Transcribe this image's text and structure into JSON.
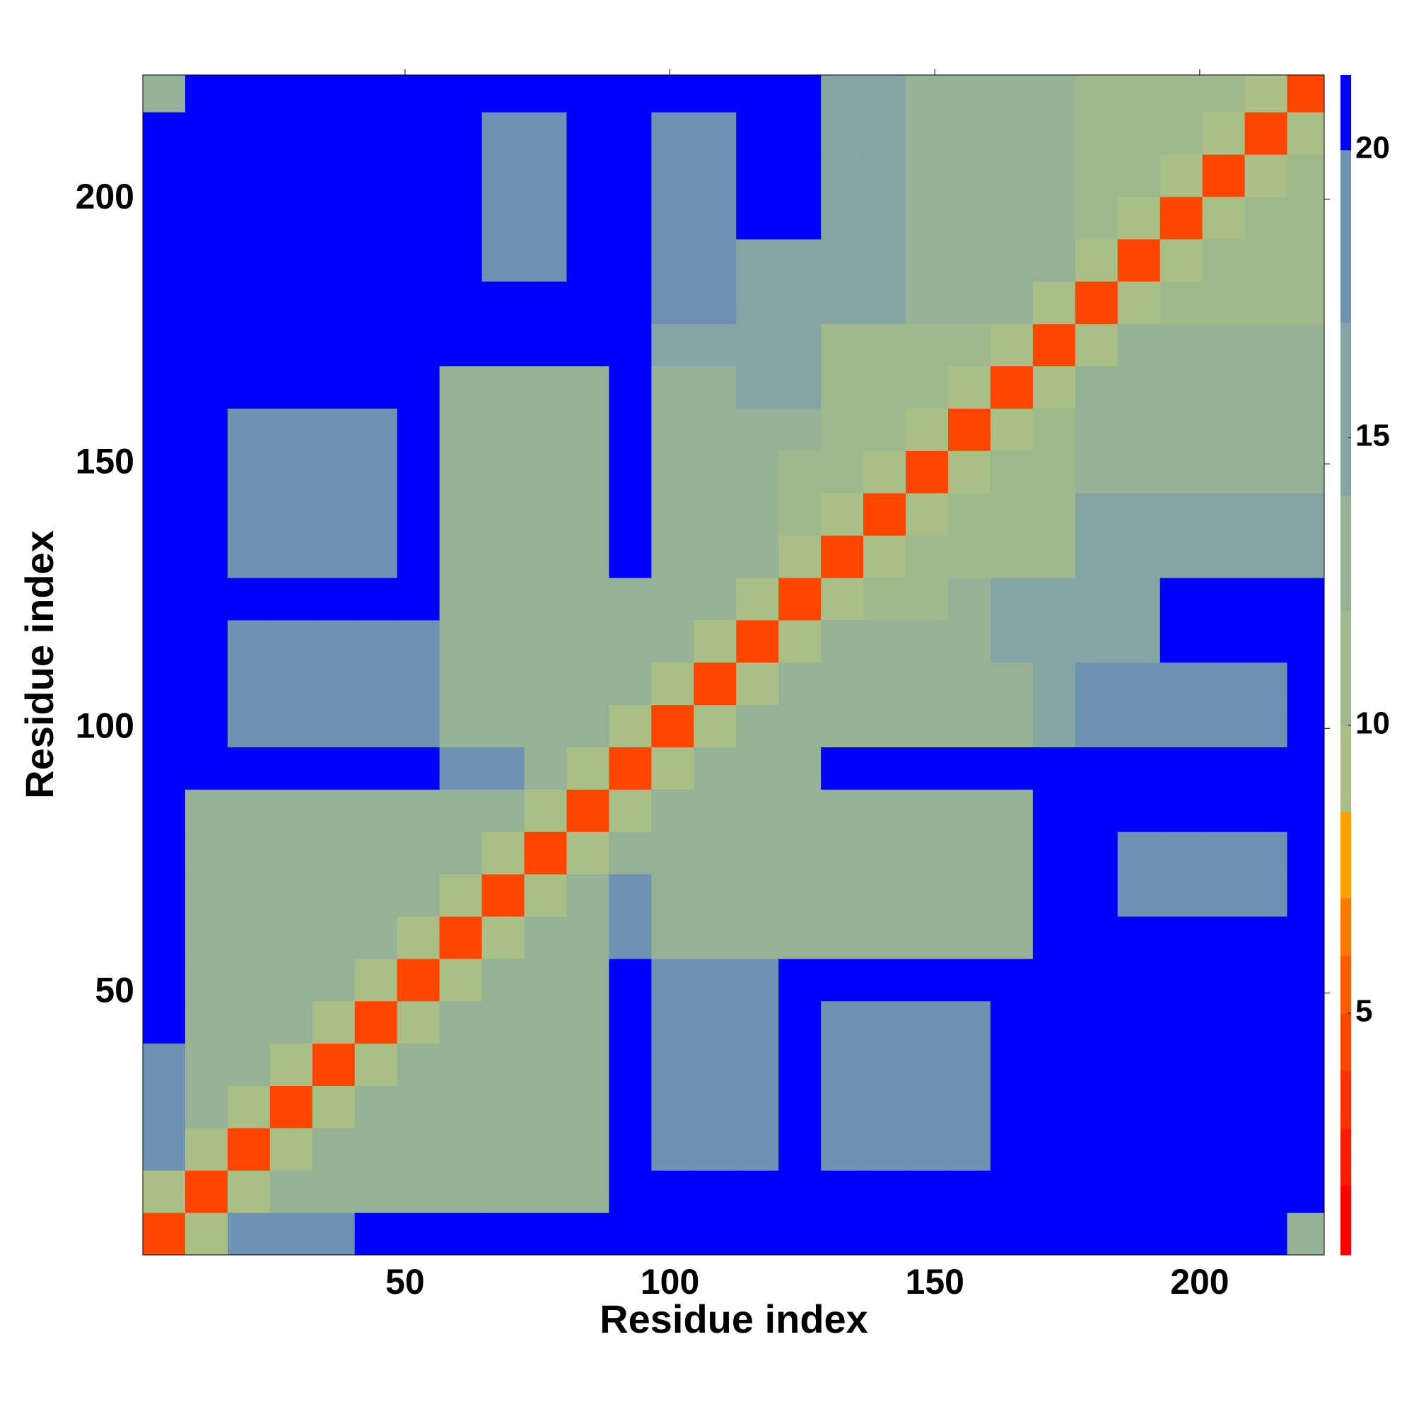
{
  "chart_data": {
    "type": "heatmap",
    "x_label": "Residue index",
    "y_label": "Residue index",
    "xlim": [
      0.5,
      223.5
    ],
    "ylim": [
      0.5,
      223.5
    ],
    "xticks": [
      50,
      100,
      150,
      200
    ],
    "yticks": [
      50,
      100,
      150,
      200
    ],
    "bins": [
      0.5,
      8.5,
      16.5,
      24.5,
      32.5,
      40.5,
      48.5,
      56.5,
      64.5,
      72.5,
      80.5,
      88.5,
      96.5,
      104.5,
      112.5,
      120.5,
      128.5,
      136.5,
      144.5,
      152.5,
      160.5,
      168.5,
      176.5,
      184.5,
      192.5,
      200.5,
      208.5,
      216.5,
      223.5
    ],
    "z": [
      [
        4,
        9,
        17,
        17,
        17,
        21,
        21,
        21,
        21,
        21,
        21,
        21,
        21,
        21,
        21,
        21,
        21,
        21,
        21,
        21,
        21,
        21,
        21,
        21,
        21,
        21,
        21,
        13
      ],
      [
        9,
        4,
        9,
        12,
        12,
        12,
        12,
        12,
        12,
        12,
        12,
        21,
        21,
        21,
        21,
        21,
        21,
        21,
        21,
        21,
        21,
        21,
        21,
        21,
        21,
        21,
        21,
        21
      ],
      [
        17,
        9,
        4,
        9,
        12,
        12,
        12,
        12,
        12,
        12,
        12,
        21,
        17,
        17,
        17,
        21,
        17,
        17,
        17,
        17,
        21,
        21,
        21,
        21,
        21,
        21,
        21,
        21
      ],
      [
        17,
        12,
        9,
        4,
        9,
        12,
        12,
        12,
        12,
        12,
        12,
        21,
        17,
        17,
        17,
        21,
        17,
        17,
        17,
        17,
        21,
        21,
        21,
        21,
        21,
        21,
        21,
        21
      ],
      [
        17,
        12,
        12,
        9,
        4,
        9,
        12,
        12,
        12,
        12,
        12,
        21,
        17,
        17,
        17,
        21,
        17,
        17,
        17,
        17,
        21,
        21,
        21,
        21,
        21,
        21,
        21,
        21
      ],
      [
        21,
        12,
        12,
        12,
        9,
        4,
        9,
        12,
        12,
        12,
        12,
        21,
        17,
        17,
        17,
        21,
        17,
        17,
        17,
        17,
        21,
        21,
        21,
        21,
        21,
        21,
        21,
        21
      ],
      [
        21,
        12,
        12,
        12,
        12,
        9,
        4,
        9,
        12,
        12,
        12,
        21,
        17,
        17,
        17,
        21,
        21,
        21,
        21,
        21,
        21,
        21,
        21,
        21,
        21,
        21,
        21,
        21
      ],
      [
        21,
        12,
        12,
        12,
        12,
        12,
        9,
        4,
        9,
        12,
        12,
        17,
        12,
        12,
        12,
        12,
        12,
        12,
        12,
        12,
        12,
        21,
        21,
        21,
        21,
        21,
        21,
        21
      ],
      [
        21,
        12,
        12,
        12,
        12,
        12,
        12,
        9,
        4,
        9,
        12,
        17,
        12,
        12,
        12,
        12,
        12,
        12,
        12,
        12,
        12,
        21,
        21,
        17,
        17,
        17,
        17,
        21
      ],
      [
        21,
        12,
        12,
        12,
        12,
        12,
        12,
        12,
        9,
        4,
        9,
        12,
        12,
        12,
        12,
        12,
        12,
        12,
        12,
        12,
        12,
        21,
        21,
        17,
        17,
        17,
        17,
        21
      ],
      [
        21,
        12,
        12,
        12,
        12,
        12,
        12,
        12,
        12,
        9,
        4,
        9,
        12,
        12,
        12,
        12,
        12,
        12,
        12,
        12,
        12,
        21,
        21,
        21,
        21,
        21,
        21,
        21
      ],
      [
        21,
        21,
        21,
        21,
        21,
        21,
        21,
        17,
        17,
        12,
        9,
        4,
        9,
        12,
        12,
        12,
        21,
        21,
        21,
        21,
        21,
        21,
        21,
        21,
        21,
        21,
        21,
        21
      ],
      [
        21,
        21,
        17,
        17,
        17,
        17,
        17,
        12,
        12,
        12,
        12,
        9,
        4,
        9,
        12,
        12,
        12,
        12,
        12,
        12,
        12,
        14,
        18,
        18,
        18,
        18,
        18,
        21
      ],
      [
        21,
        21,
        17,
        17,
        17,
        17,
        17,
        12,
        12,
        12,
        12,
        12,
        9,
        4,
        9,
        12,
        12,
        12,
        12,
        12,
        12,
        14,
        18,
        18,
        18,
        18,
        18,
        21
      ],
      [
        21,
        21,
        17,
        17,
        17,
        17,
        17,
        12,
        12,
        12,
        12,
        12,
        12,
        9,
        4,
        9,
        12,
        12,
        12,
        13,
        15,
        15,
        14,
        14,
        21,
        21,
        21,
        21
      ],
      [
        21,
        21,
        21,
        21,
        21,
        21,
        21,
        12,
        12,
        12,
        12,
        12,
        12,
        12,
        9,
        4,
        9,
        10,
        10,
        13,
        16,
        15,
        14,
        14,
        21,
        21,
        21,
        21
      ],
      [
        21,
        21,
        17,
        17,
        17,
        17,
        21,
        12,
        12,
        12,
        12,
        21,
        12,
        12,
        12,
        9,
        4,
        9,
        11,
        11,
        11,
        11,
        15,
        15,
        15,
        15,
        15,
        15
      ],
      [
        21,
        21,
        17,
        17,
        17,
        17,
        21,
        12,
        12,
        12,
        12,
        21,
        12,
        12,
        12,
        10,
        9,
        4,
        9,
        11,
        11,
        11,
        15,
        15,
        15,
        15,
        15,
        15
      ],
      [
        21,
        21,
        17,
        17,
        17,
        17,
        21,
        12,
        12,
        12,
        12,
        21,
        12,
        12,
        12,
        10,
        11,
        9,
        4,
        9,
        11,
        11,
        12,
        12,
        12,
        12,
        12,
        12
      ],
      [
        21,
        21,
        17,
        17,
        17,
        17,
        21,
        12,
        12,
        12,
        12,
        21,
        12,
        12,
        13,
        13,
        11,
        11,
        9,
        4,
        9,
        11,
        12,
        12,
        12,
        12,
        12,
        12
      ],
      [
        21,
        21,
        21,
        21,
        21,
        21,
        21,
        12,
        12,
        12,
        12,
        21,
        12,
        12,
        15,
        16,
        11,
        11,
        11,
        9,
        4,
        9,
        12,
        12,
        12,
        12,
        12,
        12
      ],
      [
        21,
        21,
        21,
        21,
        21,
        21,
        21,
        21,
        21,
        21,
        21,
        21,
        14,
        14,
        15,
        15,
        11,
        11,
        11,
        11,
        9,
        4,
        9,
        12,
        12,
        12,
        12,
        12
      ],
      [
        21,
        21,
        21,
        21,
        21,
        21,
        21,
        21,
        21,
        21,
        21,
        21,
        18,
        18,
        14,
        14,
        15,
        15,
        12,
        12,
        12,
        9,
        4,
        9,
        11,
        11,
        11,
        11
      ],
      [
        21,
        21,
        21,
        21,
        21,
        21,
        21,
        21,
        17,
        17,
        21,
        21,
        18,
        18,
        14,
        14,
        15,
        15,
        12,
        12,
        12,
        12,
        9,
        4,
        9,
        11,
        11,
        11
      ],
      [
        21,
        21,
        21,
        21,
        21,
        21,
        21,
        21,
        17,
        17,
        21,
        21,
        18,
        18,
        21,
        21,
        15,
        15,
        12,
        12,
        12,
        12,
        11,
        9,
        4,
        9,
        11,
        11
      ],
      [
        21,
        21,
        21,
        21,
        21,
        21,
        21,
        21,
        17,
        17,
        21,
        21,
        18,
        18,
        21,
        21,
        15,
        15,
        12,
        12,
        12,
        12,
        11,
        11,
        9,
        4,
        9,
        11
      ],
      [
        21,
        21,
        21,
        21,
        21,
        21,
        21,
        21,
        17,
        17,
        21,
        21,
        18,
        18,
        21,
        21,
        15,
        15,
        12,
        12,
        12,
        12,
        11,
        11,
        11,
        9,
        4,
        9
      ],
      [
        13,
        21,
        21,
        21,
        21,
        21,
        21,
        21,
        21,
        21,
        21,
        21,
        21,
        21,
        21,
        21,
        15,
        15,
        12,
        12,
        12,
        12,
        11,
        11,
        11,
        11,
        9,
        4
      ]
    ],
    "colorbar": {
      "ticks": [
        5,
        10,
        15,
        20
      ],
      "bounds": [
        0.8,
        2,
        3,
        4,
        5,
        6,
        7,
        8.5,
        10,
        12,
        14,
        17,
        20,
        21.3
      ],
      "colors": [
        "#ff0000",
        "#ff1a00",
        "#ff3000",
        "#ff4600",
        "#ff5e00",
        "#ff7800",
        "#ffa000",
        "#a9bf85",
        "#a0b98c",
        "#96b296",
        "#85a4a4",
        "#6e92b2",
        "#0000ff"
      ]
    }
  }
}
